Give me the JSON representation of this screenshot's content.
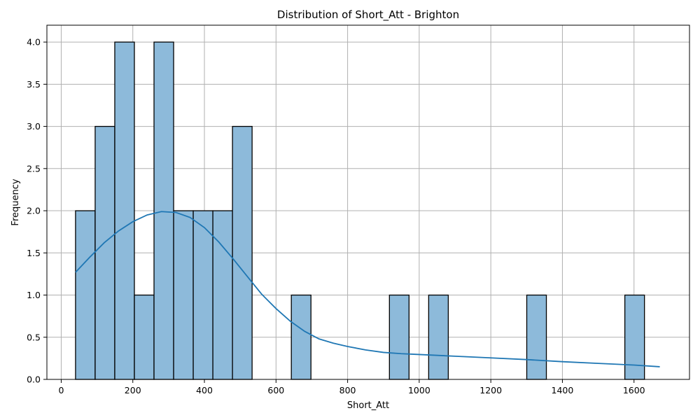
{
  "chart_data": {
    "type": "bar",
    "title": "Distribution of Short_Att - Brighton",
    "xlabel": "Short_Att",
    "ylabel": "Frequency",
    "xlim": [
      -40,
      1755
    ],
    "ylim": [
      0,
      4.2
    ],
    "xticks": [
      0,
      200,
      400,
      600,
      800,
      1000,
      1200,
      1400,
      1600
    ],
    "yticks": [
      "0.0",
      "0.5",
      "1.0",
      "1.5",
      "2.0",
      "2.5",
      "3.0",
      "3.5",
      "4.0"
    ],
    "grid": true,
    "bins": {
      "start": 40,
      "width": 54.8,
      "counts": [
        2,
        3,
        4,
        1,
        4,
        2,
        2,
        2,
        3,
        0,
        0,
        1,
        0,
        0,
        0,
        0,
        1,
        0,
        1,
        0,
        0,
        0,
        0,
        1,
        0,
        0,
        0,
        0,
        1
      ]
    },
    "kde": {
      "x": [
        40,
        80,
        120,
        160,
        200,
        240,
        280,
        320,
        360,
        400,
        440,
        480,
        520,
        560,
        600,
        640,
        680,
        720,
        760,
        800,
        850,
        900,
        950,
        1000,
        1100,
        1200,
        1300,
        1400,
        1500,
        1600,
        1672
      ],
      "y": [
        1.27,
        1.45,
        1.62,
        1.76,
        1.87,
        1.95,
        1.99,
        1.98,
        1.92,
        1.8,
        1.63,
        1.43,
        1.22,
        1.01,
        0.84,
        0.69,
        0.57,
        0.48,
        0.43,
        0.39,
        0.35,
        0.32,
        0.305,
        0.295,
        0.275,
        0.255,
        0.235,
        0.21,
        0.19,
        0.17,
        0.15
      ]
    }
  }
}
